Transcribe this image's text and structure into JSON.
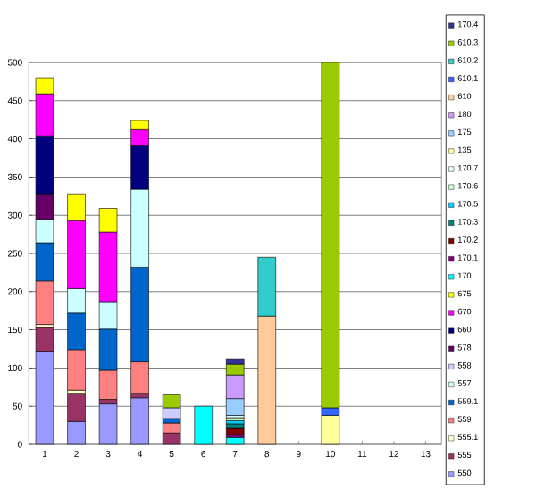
{
  "chart_data": {
    "type": "bar",
    "stacked": true,
    "categories": [
      "1",
      "2",
      "3",
      "4",
      "5",
      "6",
      "7",
      "8",
      "9",
      "10",
      "11",
      "12",
      "13"
    ],
    "ylim": [
      0,
      500
    ],
    "yticks": [
      0,
      50,
      100,
      150,
      200,
      250,
      300,
      350,
      400,
      450,
      500
    ],
    "grid": "y",
    "legend": "right",
    "series": [
      {
        "name": "550",
        "color": "#9999ff",
        "values": [
          122,
          30,
          53,
          61,
          null,
          null,
          null,
          null,
          null,
          null,
          null,
          null,
          null
        ]
      },
      {
        "name": "555",
        "color": "#993366",
        "values": [
          31,
          37,
          6,
          6,
          15,
          null,
          null,
          null,
          null,
          null,
          null,
          null,
          null
        ]
      },
      {
        "name": "555.1",
        "color": "#ffffcc",
        "values": [
          4,
          4,
          null,
          null,
          null,
          null,
          null,
          null,
          null,
          null,
          null,
          null,
          null
        ]
      },
      {
        "name": "559",
        "color": "#ff8080",
        "values": [
          57,
          53,
          38,
          41,
          13,
          null,
          null,
          null,
          null,
          null,
          null,
          null,
          null
        ]
      },
      {
        "name": "559.1",
        "color": "#0066cc",
        "values": [
          50,
          48,
          54,
          124,
          6,
          null,
          null,
          null,
          null,
          null,
          null,
          null,
          null
        ]
      },
      {
        "name": "557",
        "color": "#ccffff",
        "values": [
          31,
          32,
          36,
          102,
          null,
          null,
          null,
          null,
          null,
          null,
          null,
          null,
          null
        ]
      },
      {
        "name": "558",
        "color": "#ccccff",
        "values": [
          null,
          null,
          null,
          null,
          14,
          null,
          null,
          null,
          null,
          null,
          null,
          null,
          null
        ]
      },
      {
        "name": "578",
        "color": "#660066",
        "values": [
          33,
          null,
          null,
          null,
          null,
          null,
          null,
          null,
          null,
          null,
          null,
          null,
          null
        ]
      },
      {
        "name": "660",
        "color": "#000080",
        "values": [
          76,
          null,
          null,
          57,
          null,
          null,
          null,
          null,
          null,
          null,
          null,
          null,
          null
        ]
      },
      {
        "name": "670",
        "color": "#ff00ff",
        "values": [
          55,
          89,
          91,
          21,
          null,
          null,
          null,
          null,
          null,
          null,
          null,
          null,
          null
        ]
      },
      {
        "name": "675",
        "color": "#ffff00",
        "values": [
          21,
          35,
          31,
          12,
          null,
          null,
          null,
          null,
          null,
          null,
          null,
          null,
          null
        ]
      },
      {
        "name": "170",
        "color": "#00ffff",
        "values": [
          null,
          null,
          null,
          null,
          null,
          50,
          9,
          null,
          null,
          null,
          null,
          null,
          null
        ]
      },
      {
        "name": "170.1",
        "color": "#800080",
        "values": [
          null,
          null,
          null,
          null,
          null,
          null,
          4,
          null,
          null,
          null,
          null,
          null,
          null
        ]
      },
      {
        "name": "170.2",
        "color": "#800000",
        "values": [
          null,
          null,
          null,
          null,
          null,
          null,
          8,
          null,
          null,
          null,
          null,
          null,
          null
        ]
      },
      {
        "name": "170.3",
        "color": "#008080",
        "values": [
          null,
          null,
          null,
          null,
          null,
          null,
          6,
          null,
          null,
          null,
          null,
          null,
          null
        ]
      },
      {
        "name": "170.5",
        "color": "#00ccff",
        "values": [
          null,
          null,
          null,
          null,
          null,
          null,
          4,
          null,
          null,
          null,
          null,
          null,
          null
        ]
      },
      {
        "name": "170.6",
        "color": "#ccffcc",
        "values": [
          null,
          null,
          null,
          null,
          null,
          null,
          4,
          null,
          null,
          null,
          null,
          null,
          null
        ]
      },
      {
        "name": "170.7",
        "color": "#e0ffff",
        "values": [
          null,
          null,
          null,
          null,
          null,
          null,
          3,
          null,
          null,
          null,
          null,
          null,
          null
        ]
      },
      {
        "name": "135",
        "color": "#ffff99",
        "values": [
          null,
          null,
          null,
          null,
          null,
          null,
          null,
          null,
          null,
          38,
          null,
          null,
          null
        ]
      },
      {
        "name": "175",
        "color": "#99ccff",
        "values": [
          null,
          null,
          null,
          null,
          null,
          null,
          22,
          null,
          null,
          null,
          null,
          null,
          null
        ]
      },
      {
        "name": "180",
        "color": "#cc99ff",
        "values": [
          null,
          null,
          null,
          null,
          null,
          null,
          31,
          null,
          null,
          null,
          null,
          null,
          null
        ]
      },
      {
        "name": "610",
        "color": "#ffcc99",
        "values": [
          null,
          null,
          null,
          null,
          null,
          null,
          null,
          168,
          null,
          null,
          null,
          null,
          null
        ]
      },
      {
        "name": "610.1",
        "color": "#3366ff",
        "values": [
          null,
          null,
          null,
          null,
          null,
          null,
          null,
          null,
          null,
          10,
          null,
          null,
          null
        ]
      },
      {
        "name": "610.2",
        "color": "#33cccc",
        "values": [
          null,
          null,
          null,
          null,
          null,
          null,
          null,
          77,
          null,
          null,
          null,
          null,
          null
        ]
      },
      {
        "name": "610.3",
        "color": "#99cc00",
        "values": [
          null,
          null,
          null,
          null,
          17,
          null,
          14,
          null,
          null,
          452,
          null,
          null,
          null
        ]
      },
      {
        "name": "170.4",
        "color": "#333399",
        "values": [
          null,
          null,
          null,
          null,
          null,
          null,
          7,
          null,
          null,
          null,
          null,
          null,
          null
        ]
      }
    ]
  }
}
